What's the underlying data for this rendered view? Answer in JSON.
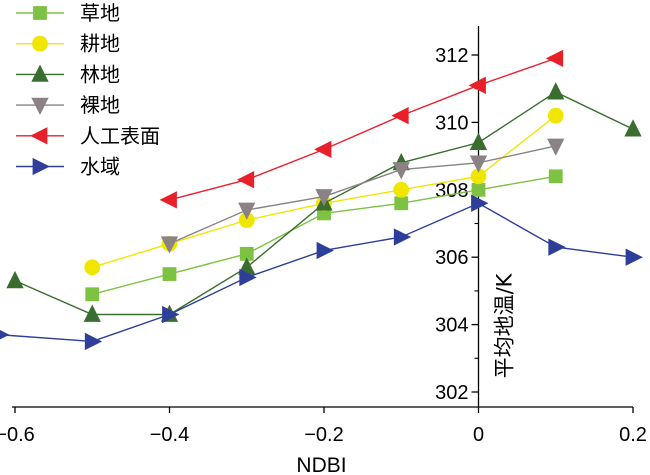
{
  "chart_data": {
    "type": "line",
    "title": "",
    "xlabel": "NDBI",
    "ylabel": "平均地温/K",
    "xlim": [
      -0.62,
      0.2
    ],
    "ylim": [
      301.8,
      313.0
    ],
    "x_ticks": [
      -0.6,
      -0.4,
      -0.2,
      0,
      0.2
    ],
    "x_tick_labels": [
      "−0.6",
      "−0.4",
      "−0.2",
      "0",
      "0.2"
    ],
    "y_ticks": [
      302,
      304,
      306,
      308,
      310,
      312
    ],
    "y_tick_labels": [
      "302",
      "304",
      "306",
      "308",
      "310",
      "312"
    ],
    "y_axis_at_x": 0,
    "legend_position": "top-left",
    "grid": false,
    "series": [
      {
        "name": "草地",
        "color": "#7dc242",
        "marker": "square",
        "x": [
          -0.5,
          -0.4,
          -0.3,
          -0.2,
          -0.1,
          0,
          0.1
        ],
        "y": [
          304.9,
          305.5,
          306.1,
          307.3,
          307.6,
          308.0,
          308.4
        ]
      },
      {
        "name": "耕地",
        "color": "#f0e600",
        "marker": "circle",
        "x": [
          -0.5,
          -0.4,
          -0.3,
          -0.2,
          -0.1,
          0,
          0.1
        ],
        "y": [
          305.7,
          306.4,
          307.1,
          307.6,
          308.0,
          308.4,
          310.2
        ]
      },
      {
        "name": "林地",
        "color": "#3a6e2e",
        "marker": "triangle-up",
        "x": [
          -0.6,
          -0.5,
          -0.4,
          -0.3,
          -0.2,
          -0.1,
          0,
          0.1,
          0.2
        ],
        "y": [
          305.3,
          304.3,
          304.3,
          305.7,
          307.6,
          308.8,
          309.4,
          310.9,
          309.8
        ]
      },
      {
        "name": "裸地",
        "color": "#8a8284",
        "marker": "triangle-down",
        "x": [
          -0.4,
          -0.3,
          -0.2,
          -0.1,
          0,
          0.1
        ],
        "y": [
          306.4,
          307.4,
          307.8,
          308.6,
          308.8,
          309.3
        ]
      },
      {
        "name": "人工表面",
        "color": "#e8202a",
        "marker": "triangle-left",
        "x": [
          -0.4,
          -0.3,
          -0.2,
          -0.1,
          0,
          0.1
        ],
        "y": [
          307.7,
          308.3,
          309.2,
          310.2,
          311.1,
          311.9
        ]
      },
      {
        "name": "水域",
        "color": "#2e3f9a",
        "marker": "triangle-right",
        "x": [
          -0.62,
          -0.5,
          -0.4,
          -0.3,
          -0.2,
          -0.1,
          0,
          0.1,
          0.2
        ],
        "y": [
          303.7,
          303.5,
          304.3,
          305.4,
          306.2,
          306.6,
          307.6,
          306.3,
          306.0
        ]
      }
    ]
  }
}
